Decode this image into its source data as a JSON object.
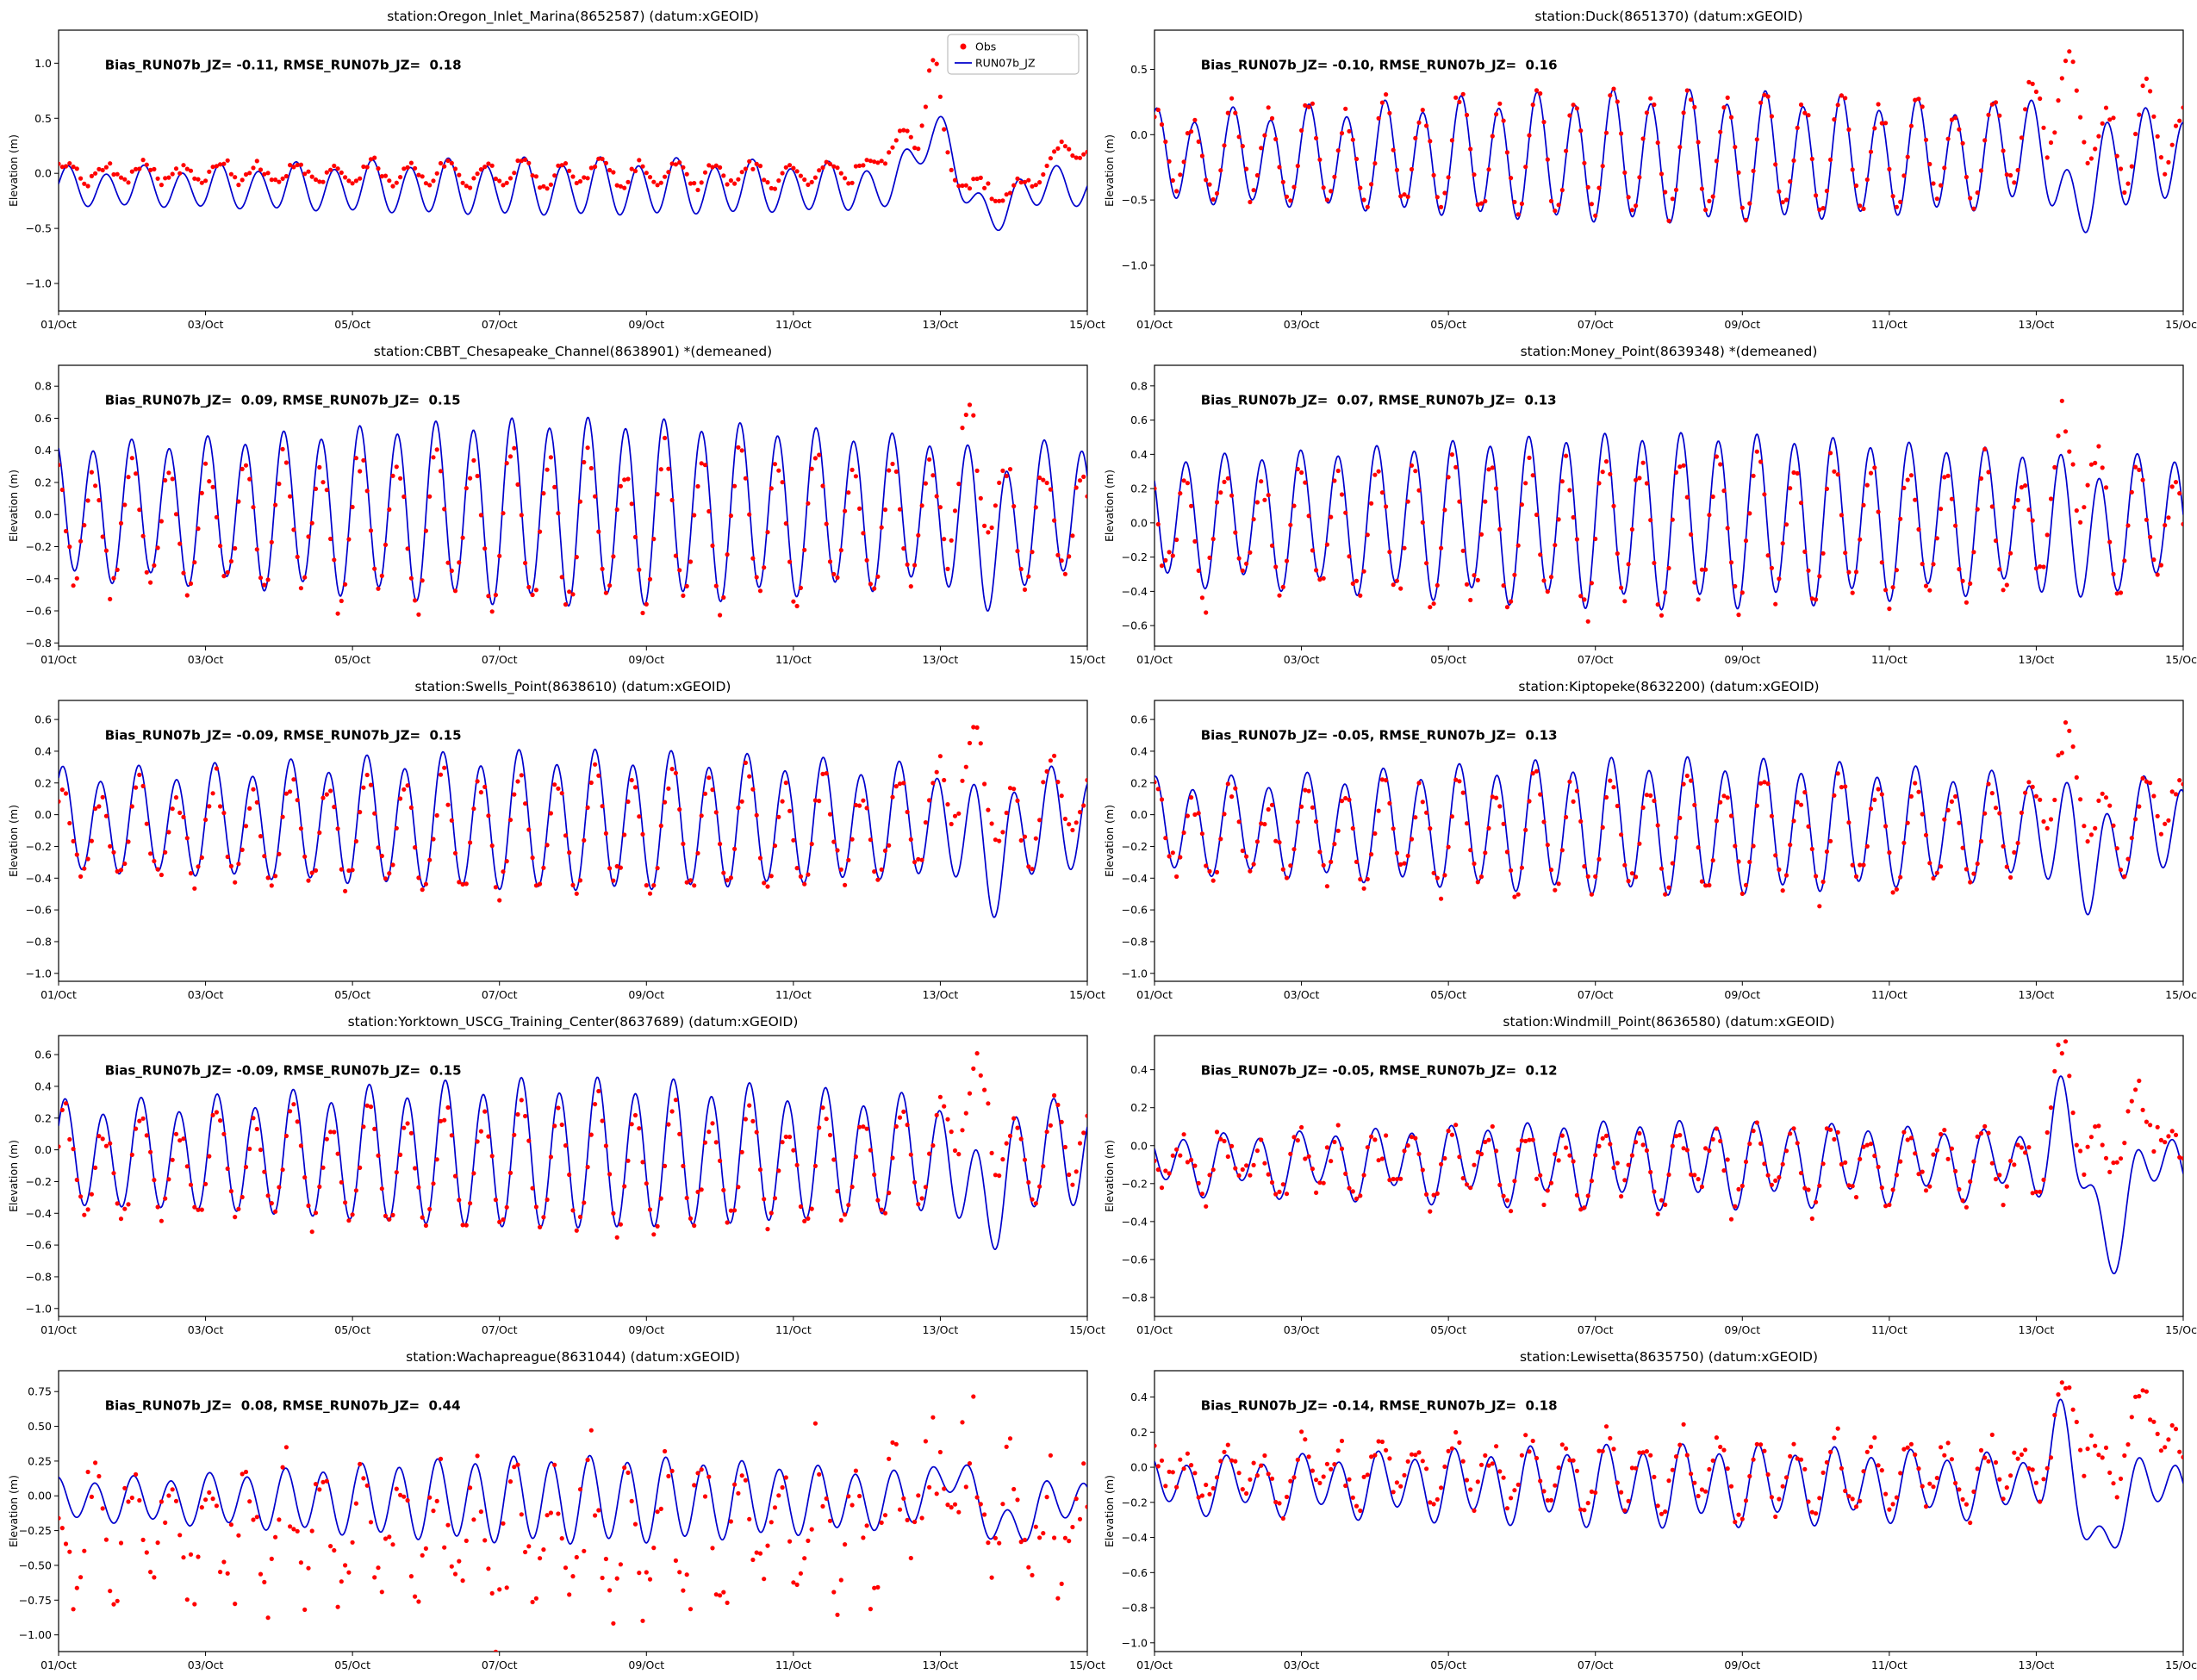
{
  "legend": {
    "entries": [
      {
        "label": "Obs",
        "color": "#ff0000",
        "marker": "dot"
      },
      {
        "label": "RUN07b_JZ",
        "color": "#0000cc",
        "marker": "line"
      }
    ]
  },
  "x_axis": {
    "tick_values": [
      0,
      2,
      4,
      6,
      8,
      10,
      12,
      14
    ],
    "tick_labels": [
      "01/Oct",
      "03/Oct",
      "05/Oct",
      "07/Oct",
      "09/Oct",
      "11/Oct",
      "13/Oct",
      "15/Oct"
    ]
  },
  "chart_data": [
    {
      "type": "line+scatter",
      "station_key": "oregon-inlet-marina",
      "title": "station:Oregon_Inlet_Marina(8652587) (datum:xGEOID)",
      "annotation": "Bias_RUN07b_JZ= -0.11, RMSE_RUN07b_JZ=  0.18",
      "bias": -0.11,
      "rmse": 0.18,
      "ylabel": "Elevation (m)",
      "ylim": [
        -1.25,
        1.3
      ],
      "yticks": [
        {
          "v": 1.0,
          "l": "1.0"
        },
        {
          "v": 0.5,
          "l": "0.5"
        },
        {
          "v": 0.0,
          "l": "0.0"
        },
        {
          "v": -0.5,
          "l": "−0.5"
        },
        {
          "v": -1.0,
          "l": "−1.0"
        }
      ],
      "legend": true,
      "seed": 7,
      "phase": 0.0,
      "series": {
        "model": {
          "mean": -0.13,
          "amp": 0.2,
          "mod": 0.2,
          "diu": 0.04,
          "events": [
            {
              "a": 0.55,
              "c": 11.95,
              "w": 0.35
            },
            {
              "a": -0.3,
              "c": 12.6,
              "w": 0.35
            }
          ]
        },
        "obs": {
          "mean": 0.0,
          "amp": 0.09,
          "mod": 0.2,
          "diu": 0.02,
          "noise": 0.025,
          "events": [
            {
              "a": 0.3,
              "c": 11.45,
              "w": 0.35
            },
            {
              "a": 1.05,
              "c": 11.9,
              "w": 0.14
            },
            {
              "a": -0.18,
              "c": 12.8,
              "w": 0.45
            },
            {
              "a": 0.25,
              "c": 13.8,
              "w": 0.3
            }
          ]
        }
      }
    },
    {
      "type": "line+scatter",
      "station_key": "duck",
      "title": "station:Duck(8651370) (datum:xGEOID)",
      "annotation": "Bias_RUN07b_JZ= -0.10, RMSE_RUN07b_JZ=  0.16",
      "bias": -0.1,
      "rmse": 0.16,
      "ylabel": "Elevation (m)",
      "ylim": [
        -1.35,
        0.8
      ],
      "yticks": [
        {
          "v": 0.5,
          "l": "0.5"
        },
        {
          "v": 0.0,
          "l": "0.0"
        },
        {
          "v": -0.5,
          "l": "−0.5"
        },
        {
          "v": -1.0,
          "l": "−1.0"
        }
      ],
      "legend": false,
      "seed": 8,
      "phase": 1.2,
      "series": {
        "model": {
          "mean": -0.18,
          "amp": 0.4,
          "mod": 0.18,
          "diu": 0.06,
          "events": [
            {
              "a": 0.15,
              "c": 12.0,
              "w": 0.3
            },
            {
              "a": -0.55,
              "c": 12.5,
              "w": 0.22
            }
          ]
        },
        "obs": {
          "mean": -0.15,
          "amp": 0.38,
          "mod": 0.18,
          "diu": 0.06,
          "noise": 0.04,
          "events": [
            {
              "a": 0.45,
              "c": 12.3,
              "w": 0.5
            },
            {
              "a": 0.2,
              "c": 13.6,
              "w": 0.4
            }
          ]
        }
      }
    },
    {
      "type": "line+scatter",
      "station_key": "cbbt-chesapeake-channel",
      "title": "station:CBBT_Chesapeake_Channel(8638901) *(demeaned)",
      "annotation": "Bias_RUN07b_JZ=  0.09, RMSE_RUN07b_JZ=  0.15",
      "bias": 0.09,
      "rmse": 0.15,
      "ylabel": "Elevation (m)",
      "ylim": [
        -0.82,
        0.93
      ],
      "yticks": [
        {
          "v": 0.8,
          "l": "0.8"
        },
        {
          "v": 0.6,
          "l": "0.6"
        },
        {
          "v": 0.4,
          "l": "0.4"
        },
        {
          "v": 0.2,
          "l": "0.2"
        },
        {
          "v": 0.0,
          "l": "0.0"
        },
        {
          "v": -0.2,
          "l": "−0.2"
        },
        {
          "v": -0.4,
          "l": "−0.4"
        },
        {
          "v": -0.6,
          "l": "−0.6"
        },
        {
          "v": -0.8,
          "l": "−0.8"
        }
      ],
      "legend": false,
      "seed": 9,
      "phase": 2.1,
      "series": {
        "model": {
          "mean": 0.02,
          "amp": 0.48,
          "mod": 0.15,
          "diu": 0.05,
          "events": [
            {
              "a": -0.25,
              "c": 12.7,
              "w": 0.25
            }
          ]
        },
        "obs": {
          "mean": -0.08,
          "amp": 0.4,
          "mod": 0.15,
          "diu": 0.05,
          "noise": 0.05,
          "events": [
            {
              "a": 0.35,
              "c": 12.4,
              "w": 0.45
            }
          ]
        }
      }
    },
    {
      "type": "line+scatter",
      "station_key": "money-point",
      "title": "station:Money_Point(8639348) *(demeaned)",
      "annotation": "Bias_RUN07b_JZ=  0.07, RMSE_RUN07b_JZ=  0.13",
      "bias": 0.07,
      "rmse": 0.13,
      "ylabel": "Elevation (m)",
      "ylim": [
        -0.72,
        0.92
      ],
      "yticks": [
        {
          "v": 0.8,
          "l": "0.8"
        },
        {
          "v": 0.6,
          "l": "0.6"
        },
        {
          "v": 0.4,
          "l": "0.4"
        },
        {
          "v": 0.2,
          "l": "0.2"
        },
        {
          "v": 0.0,
          "l": "0.0"
        },
        {
          "v": -0.2,
          "l": "−0.2"
        },
        {
          "v": -0.4,
          "l": "−0.4"
        },
        {
          "v": -0.6,
          "l": "−0.6"
        }
      ],
      "legend": false,
      "seed": 10,
      "phase": 2.6,
      "series": {
        "model": {
          "mean": 0.02,
          "amp": 0.42,
          "mod": 0.15,
          "diu": 0.05,
          "events": [
            {
              "a": -0.15,
              "c": 12.7,
              "w": 0.25
            }
          ]
        },
        "obs": {
          "mean": -0.05,
          "amp": 0.36,
          "mod": 0.15,
          "diu": 0.05,
          "noise": 0.05,
          "events": [
            {
              "a": 0.38,
              "c": 12.5,
              "w": 0.4
            }
          ]
        }
      }
    },
    {
      "type": "line+scatter",
      "station_key": "swells-point",
      "title": "station:Swells_Point(8638610) (datum:xGEOID)",
      "annotation": "Bias_RUN07b_JZ= -0.09, RMSE_RUN07b_JZ=  0.15",
      "bias": -0.09,
      "rmse": 0.15,
      "ylabel": "Elevation (m)",
      "ylim": [
        -1.05,
        0.72
      ],
      "yticks": [
        {
          "v": 0.6,
          "l": "0.6"
        },
        {
          "v": 0.4,
          "l": "0.4"
        },
        {
          "v": 0.2,
          "l": "0.2"
        },
        {
          "v": 0.0,
          "l": "0.0"
        },
        {
          "v": -0.2,
          "l": "−0.2"
        },
        {
          "v": -0.4,
          "l": "−0.4"
        },
        {
          "v": -0.6,
          "l": "−0.6"
        },
        {
          "v": -0.8,
          "l": "−0.8"
        },
        {
          "v": -1.0,
          "l": "−1.0"
        }
      ],
      "legend": false,
      "seed": 11,
      "phase": 0.9,
      "series": {
        "model": {
          "mean": -0.05,
          "amp": 0.36,
          "mod": 0.15,
          "diu": 0.05,
          "events": [
            {
              "a": -0.3,
              "c": 12.7,
              "w": 0.25
            }
          ]
        },
        "obs": {
          "mean": -0.12,
          "amp": 0.31,
          "mod": 0.15,
          "diu": 0.05,
          "noise": 0.04,
          "events": [
            {
              "a": 0.42,
              "c": 12.35,
              "w": 0.45
            },
            {
              "a": 0.25,
              "c": 13.7,
              "w": 0.35
            }
          ]
        }
      }
    },
    {
      "type": "line+scatter",
      "station_key": "kiptopeke",
      "title": "station:Kiptopeke(8632200) (datum:xGEOID)",
      "annotation": "Bias_RUN07b_JZ= -0.05, RMSE_RUN07b_JZ=  0.13",
      "bias": -0.05,
      "rmse": 0.13,
      "ylabel": "Elevation (m)",
      "ylim": [
        -1.05,
        0.72
      ],
      "yticks": [
        {
          "v": 0.6,
          "l": "0.6"
        },
        {
          "v": 0.4,
          "l": "0.4"
        },
        {
          "v": 0.2,
          "l": "0.2"
        },
        {
          "v": 0.0,
          "l": "0.0"
        },
        {
          "v": -0.2,
          "l": "−0.2"
        },
        {
          "v": -0.4,
          "l": "−0.4"
        },
        {
          "v": -0.6,
          "l": "−0.6"
        },
        {
          "v": -0.8,
          "l": "−0.8"
        },
        {
          "v": -1.0,
          "l": "−1.0"
        }
      ],
      "legend": false,
      "seed": 12,
      "phase": 1.5,
      "series": {
        "model": {
          "mean": -0.08,
          "amp": 0.34,
          "mod": 0.18,
          "diu": 0.05,
          "events": [
            {
              "a": -0.3,
              "c": 12.75,
              "w": 0.25
            }
          ]
        },
        "obs": {
          "mean": -0.13,
          "amp": 0.29,
          "mod": 0.18,
          "diu": 0.05,
          "noise": 0.04,
          "events": [
            {
              "a": 0.45,
              "c": 12.35,
              "w": 0.4
            },
            {
              "a": 0.25,
              "c": 13.8,
              "w": 0.3
            }
          ]
        }
      }
    },
    {
      "type": "line+scatter",
      "station_key": "yorktown-uscg-training-center",
      "title": "station:Yorktown_USCG_Training_Center(8637689) (datum:xGEOID)",
      "annotation": "Bias_RUN07b_JZ= -0.09, RMSE_RUN07b_JZ=  0.15",
      "bias": -0.09,
      "rmse": 0.15,
      "ylabel": "Elevation (m)",
      "ylim": [
        -1.05,
        0.72
      ],
      "yticks": [
        {
          "v": 0.6,
          "l": "0.6"
        },
        {
          "v": 0.4,
          "l": "0.4"
        },
        {
          "v": 0.2,
          "l": "0.2"
        },
        {
          "v": 0.0,
          "l": "0.0"
        },
        {
          "v": -0.2,
          "l": "−0.2"
        },
        {
          "v": -0.4,
          "l": "−0.4"
        },
        {
          "v": -0.6,
          "l": "−0.6"
        },
        {
          "v": -0.8,
          "l": "−0.8"
        },
        {
          "v": -1.0,
          "l": "−1.0"
        }
      ],
      "legend": false,
      "seed": 13,
      "phase": 0.5,
      "series": {
        "model": {
          "mean": -0.04,
          "amp": 0.38,
          "mod": 0.18,
          "diu": 0.05,
          "events": [
            {
              "a": -0.4,
              "c": 12.6,
              "w": 0.25
            }
          ]
        },
        "obs": {
          "mean": -0.12,
          "amp": 0.32,
          "mod": 0.18,
          "diu": 0.05,
          "noise": 0.04,
          "events": [
            {
              "a": 0.4,
              "c": 12.4,
              "w": 0.5
            },
            {
              "a": 0.25,
              "c": 13.9,
              "w": 0.35
            }
          ]
        }
      }
    },
    {
      "type": "line+scatter",
      "station_key": "windmill-point",
      "title": "station:Windmill_Point(8636580) (datum:xGEOID)",
      "annotation": "Bias_RUN07b_JZ= -0.05, RMSE_RUN07b_JZ=  0.12",
      "bias": -0.05,
      "rmse": 0.12,
      "ylabel": "Elevation (m)",
      "ylim": [
        -0.9,
        0.58
      ],
      "yticks": [
        {
          "v": 0.4,
          "l": "0.4"
        },
        {
          "v": 0.2,
          "l": "0.2"
        },
        {
          "v": 0.0,
          "l": "0.0"
        },
        {
          "v": -0.2,
          "l": "−0.2"
        },
        {
          "v": -0.4,
          "l": "−0.4"
        },
        {
          "v": -0.6,
          "l": "−0.6"
        },
        {
          "v": -0.8,
          "l": "−0.8"
        }
      ],
      "legend": false,
      "seed": 14,
      "phase": 2.9,
      "series": {
        "model": {
          "mean": -0.09,
          "amp": 0.17,
          "mod": 0.2,
          "diu": 0.05,
          "events": [
            {
              "a": 0.3,
              "c": 12.35,
              "w": 0.18
            },
            {
              "a": -0.42,
              "c": 13.0,
              "w": 0.3
            }
          ]
        },
        "obs": {
          "mean": -0.1,
          "amp": 0.15,
          "mod": 0.2,
          "diu": 0.05,
          "noise": 0.045,
          "events": [
            {
              "a": 0.5,
              "c": 12.35,
              "w": 0.2
            },
            {
              "a": 0.25,
              "c": 13.4,
              "w": 0.45
            }
          ]
        }
      }
    },
    {
      "type": "line+scatter",
      "station_key": "wachapreague",
      "title": "station:Wachapreague(8631044) (datum:xGEOID)",
      "annotation": "Bias_RUN07b_JZ=  0.08, RMSE_RUN07b_JZ=  0.44",
      "bias": 0.08,
      "rmse": 0.44,
      "ylabel": "Elevation (m)",
      "ylim": [
        -1.12,
        0.9
      ],
      "yticks": [
        {
          "v": 0.75,
          "l": "0.75"
        },
        {
          "v": 0.5,
          "l": "0.50"
        },
        {
          "v": 0.25,
          "l": "0.25"
        },
        {
          "v": 0.0,
          "l": "0.00"
        },
        {
          "v": -0.25,
          "l": "−0.25"
        },
        {
          "v": -0.5,
          "l": "−0.50"
        },
        {
          "v": -0.75,
          "l": "−0.75"
        },
        {
          "v": -1.0,
          "l": "−1.00"
        }
      ],
      "legend": false,
      "seed": 15,
      "phase": 1.8,
      "series": {
        "model": {
          "mean": -0.03,
          "amp": 0.22,
          "mod": 0.35,
          "diu": 0.03,
          "events": [
            {
              "a": 0.25,
              "c": 12.15,
              "w": 0.25
            },
            {
              "a": -0.2,
              "c": 12.9,
              "w": 0.4
            }
          ]
        },
        "obs": {
          "mean": -0.28,
          "amp": 0.38,
          "mod": 0.15,
          "diu": 0.05,
          "noise": 0.17,
          "events": [
            {
              "a": 0.45,
              "c": 12.2,
              "w": 0.8
            }
          ]
        }
      }
    },
    {
      "type": "line+scatter",
      "station_key": "lewisetta",
      "title": "station:Lewisetta(8635750) (datum:xGEOID)",
      "annotation": "Bias_RUN07b_JZ= -0.14, RMSE_RUN07b_JZ=  0.18",
      "bias": -0.14,
      "rmse": 0.18,
      "ylabel": "Elevation (m)",
      "ylim": [
        -1.05,
        0.55
      ],
      "yticks": [
        {
          "v": 0.4,
          "l": "0.4"
        },
        {
          "v": 0.2,
          "l": "0.2"
        },
        {
          "v": 0.0,
          "l": "0.0"
        },
        {
          "v": -0.2,
          "l": "−0.2"
        },
        {
          "v": -0.4,
          "l": "−0.4"
        },
        {
          "v": -0.6,
          "l": "−0.6"
        },
        {
          "v": -0.8,
          "l": "−0.8"
        },
        {
          "v": -1.0,
          "l": "−1.0"
        }
      ],
      "legend": false,
      "seed": 16,
      "phase": 2.4,
      "series": {
        "model": {
          "mean": -0.1,
          "amp": 0.17,
          "mod": 0.2,
          "diu": 0.05,
          "events": [
            {
              "a": 0.35,
              "c": 12.3,
              "w": 0.2
            },
            {
              "a": -0.35,
              "c": 12.85,
              "w": 0.3
            }
          ]
        },
        "obs": {
          "mean": -0.03,
          "amp": 0.15,
          "mod": 0.2,
          "diu": 0.05,
          "noise": 0.05,
          "events": [
            {
              "a": 0.35,
              "c": 12.4,
              "w": 0.3
            },
            {
              "a": 0.35,
              "c": 13.5,
              "w": 0.35
            }
          ]
        }
      }
    }
  ]
}
